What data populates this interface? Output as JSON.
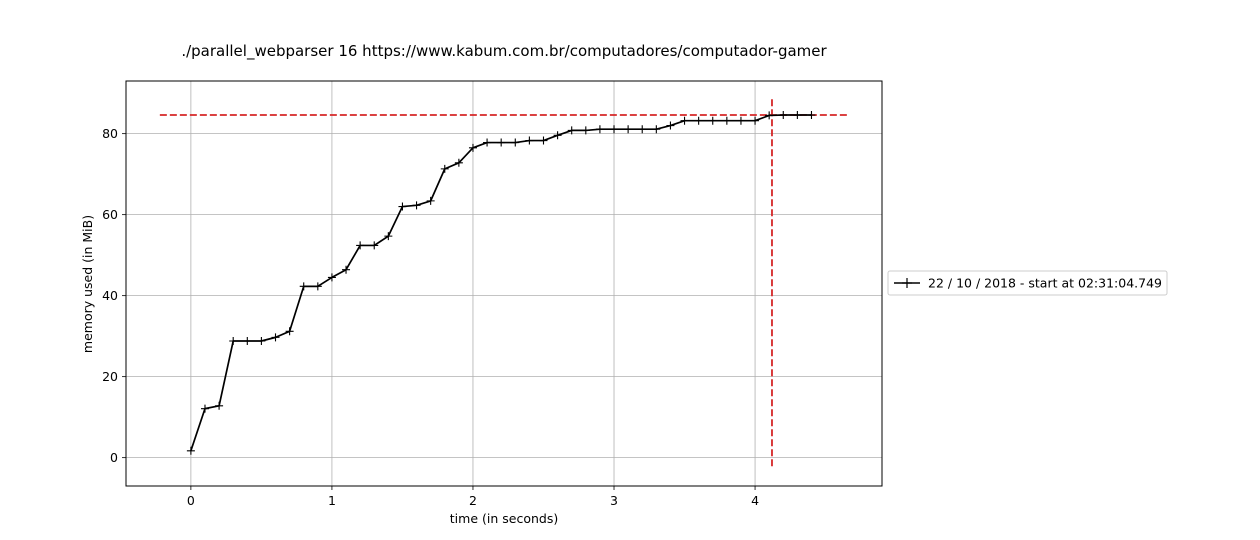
{
  "chart_data": {
    "type": "line",
    "title": "./parallel_webparser 16 https://www.kabum.com.br/computadores/computador-gamer",
    "xlabel": "time (in seconds)",
    "ylabel": "memory used (in MiB)",
    "xlim": [
      -0.46,
      4.9
    ],
    "ylim": [
      -7,
      93
    ],
    "xticks": [
      0,
      1,
      2,
      3,
      4
    ],
    "yticks": [
      0,
      20,
      40,
      60,
      80
    ],
    "grid": true,
    "legend_position": "center-right outside",
    "series": [
      {
        "name": "22 / 10 / 2018 - start at 02:31:04.749",
        "color": "#000000",
        "marker": "+",
        "x": [
          0,
          0.1,
          0.2,
          0.3,
          0.4,
          0.5,
          0.6,
          0.7,
          0.8,
          0.9,
          1.0,
          1.1,
          1.2,
          1.3,
          1.4,
          1.5,
          1.6,
          1.7,
          1.8,
          1.9,
          2.0,
          2.1,
          2.2,
          2.3,
          2.4,
          2.5,
          2.6,
          2.7,
          2.8,
          2.9,
          3.0,
          3.1,
          3.2,
          3.3,
          3.4,
          3.5,
          3.6,
          3.7,
          3.8,
          3.9,
          4.0,
          4.1,
          4.2,
          4.3,
          4.4
        ],
        "y": [
          1.7,
          12.1,
          12.8,
          28.8,
          28.8,
          28.8,
          29.7,
          31.2,
          42.3,
          42.3,
          44.5,
          46.4,
          52.4,
          52.4,
          54.7,
          62.0,
          62.3,
          63.4,
          71.3,
          72.8,
          76.5,
          77.8,
          77.8,
          77.8,
          78.3,
          78.3,
          79.6,
          80.8,
          80.8,
          81.1,
          81.1,
          81.1,
          81.1,
          81.1,
          82.0,
          83.2,
          83.2,
          83.2,
          83.2,
          83.2,
          83.2,
          84.5,
          84.6,
          84.6,
          84.6
        ]
      }
    ],
    "reference_lines": {
      "color": "#d62728",
      "style": "dashed",
      "peak_memory_y": 84.6,
      "peak_span_x": [
        -0.22,
        4.66
      ],
      "peak_time_x": 4.12,
      "peak_span_y": [
        -2.5,
        88.5
      ]
    }
  }
}
